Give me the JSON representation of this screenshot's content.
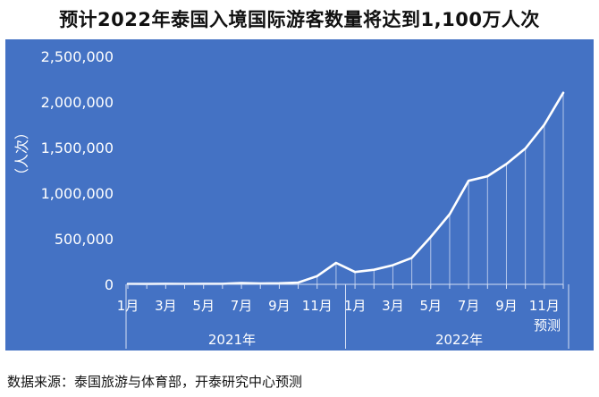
{
  "page": {
    "title": "预计2022年泰国入境国际游客数量将达到1,100万人次",
    "source": "数据来源：泰国旅游与体育部，开泰研究中心预测"
  },
  "colors": {
    "background": "#4472C4",
    "line": "#ffffff",
    "text": "#ffffff",
    "dropline": "#d6e0f5"
  },
  "chart_data": {
    "type": "line",
    "ylabel": "（人次）",
    "ylim": [
      0,
      2500000
    ],
    "yticks": [
      "0",
      "500,000",
      "1,000,000",
      "1,500,000",
      "2,000,000",
      "2,500,000"
    ],
    "grid": false,
    "legend": "none",
    "x": [
      "2021-01",
      "2021-02",
      "2021-03",
      "2021-04",
      "2021-05",
      "2021-06",
      "2021-07",
      "2021-08",
      "2021-09",
      "2021-10",
      "2021-11",
      "2021-12",
      "2022-01",
      "2022-02",
      "2022-03",
      "2022-04",
      "2022-05",
      "2022-06",
      "2022-07",
      "2022-08",
      "2022-09",
      "2022-10",
      "2022-11",
      "2022-12"
    ],
    "xtick_labels": [
      "1月",
      "",
      "3月",
      "",
      "5月",
      "",
      "7月",
      "",
      "9月",
      "",
      "11月",
      "",
      "1月",
      "",
      "3月",
      "",
      "5月",
      "",
      "7月",
      "",
      "9月",
      "",
      "11月",
      ""
    ],
    "year_labels": [
      {
        "year": "2021年",
        "from": 0,
        "to": 11
      },
      {
        "year": "2022年",
        "from": 12,
        "to": 23
      }
    ],
    "forecast_label": "预测",
    "series": [
      {
        "values": [
          5000,
          4000,
          6000,
          5000,
          5500,
          6000,
          15000,
          10000,
          12000,
          20000,
          90000,
          235000,
          135000,
          160000,
          210000,
          290000,
          520000,
          770000,
          1135000,
          1185000,
          1320000,
          1490000,
          1750000,
          2100000
        ]
      }
    ]
  }
}
